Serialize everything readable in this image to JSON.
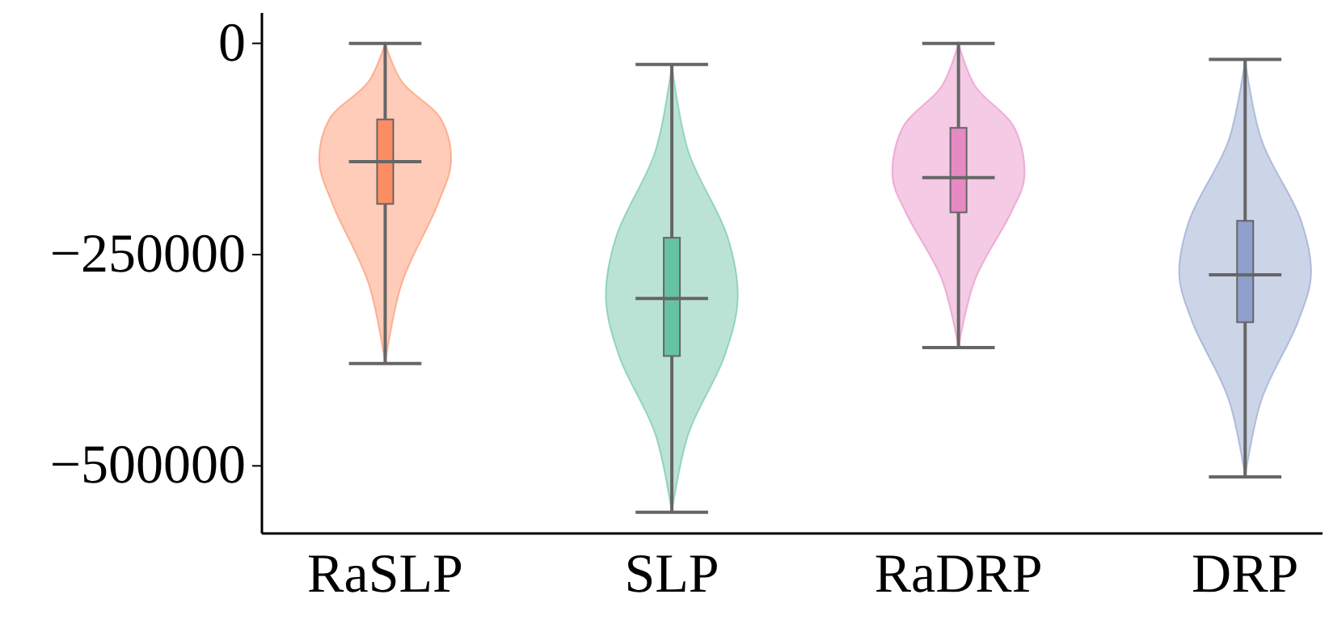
{
  "chart_data": {
    "type": "box",
    "categories": [
      "RaSLP",
      "SLP",
      "RaDRP",
      "DRP"
    ],
    "colors": [
      "#fc8d62",
      "#66c2a5",
      "#e78ac3",
      "#8da0cb"
    ],
    "boxes": [
      {
        "low": -379000,
        "q1": -190000,
        "median": -140000,
        "q3": -90000,
        "high": 0
      },
      {
        "low": -555000,
        "q1": -370000,
        "median": -302000,
        "q3": -230000,
        "high": -25000
      },
      {
        "low": -360000,
        "q1": -200000,
        "median": -159000,
        "q3": -100000,
        "high": 0
      },
      {
        "low": -513000,
        "q1": -330000,
        "median": -274000,
        "q3": -210000,
        "high": -19000
      }
    ],
    "ylim": [
      -580000,
      36000
    ],
    "yticks": [
      0,
      {
        "value": -250000,
        "label": "−250000"
      },
      {
        "value": -500000,
        "label": "−500000"
      }
    ],
    "grid": false
  }
}
